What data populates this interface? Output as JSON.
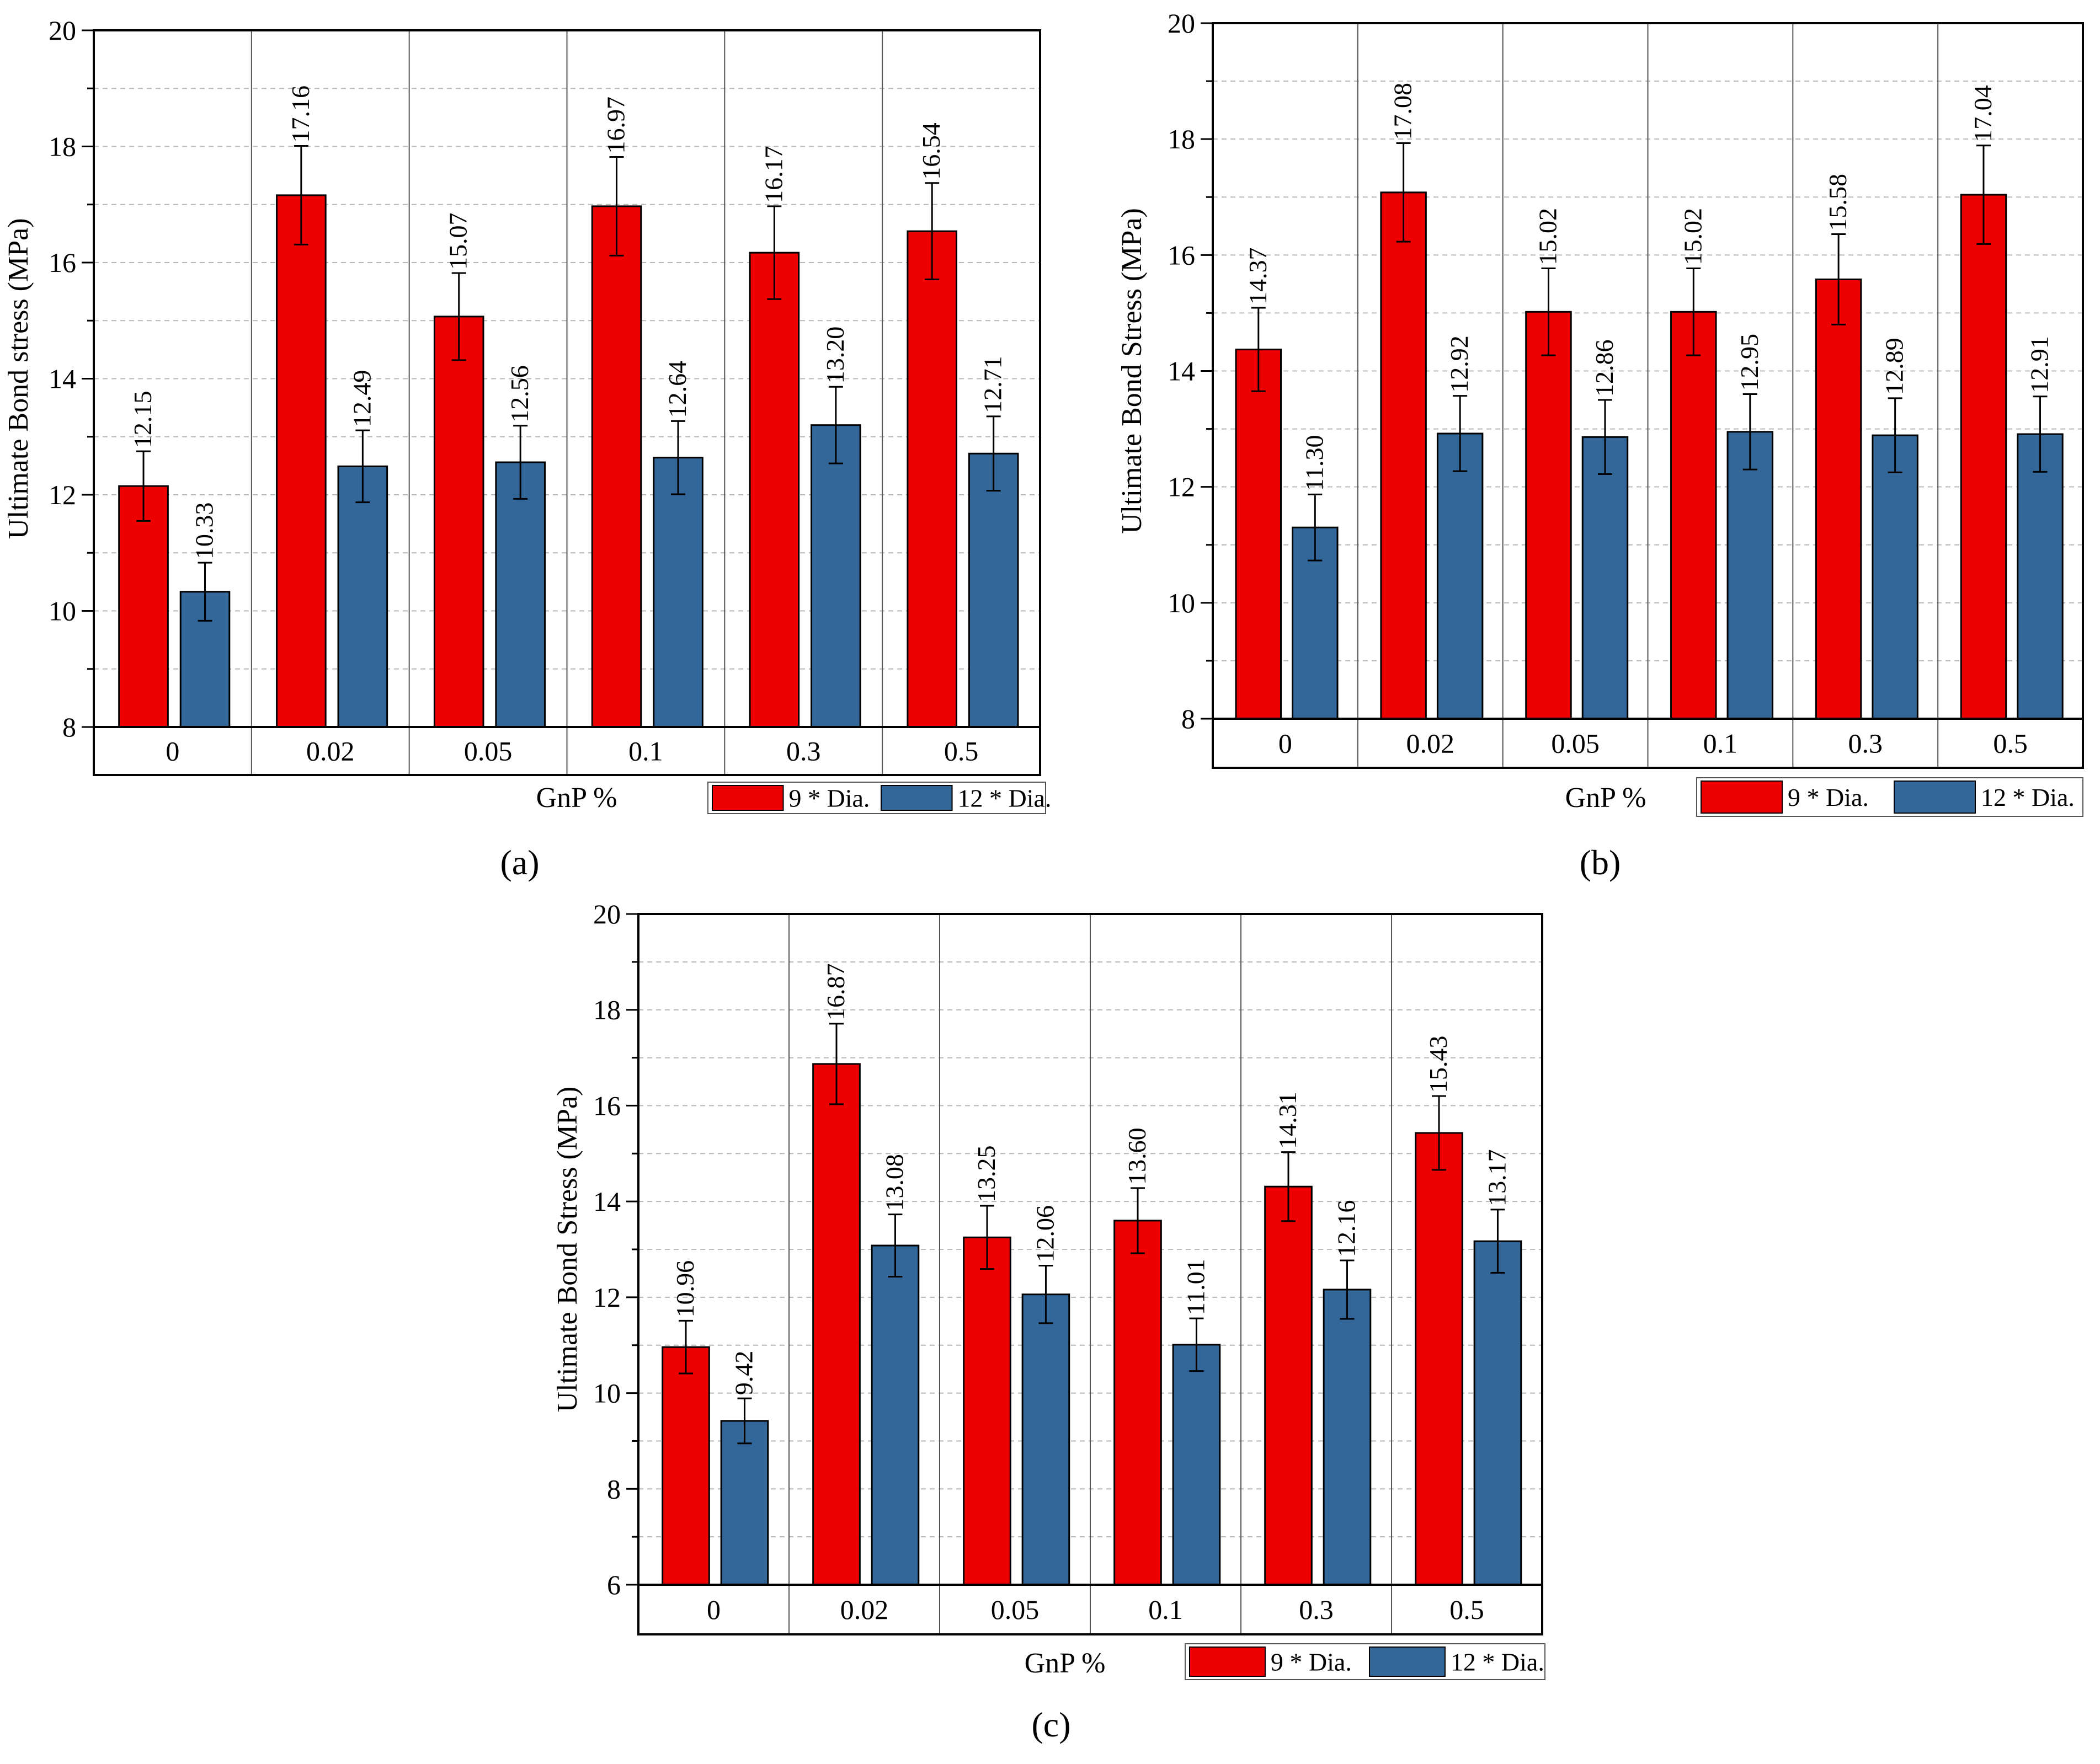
{
  "colors": {
    "series_9": "#ee0000",
    "series_12": "#336699",
    "grid": "#b8b8b8",
    "axis": "#000000"
  },
  "chart_data": [
    {
      "panel": "a",
      "caption": "(a)",
      "type": "bar",
      "ylabel": "Ultimate Bond stress (MPa)",
      "xlabel": "GnP %",
      "ylim": [
        8,
        20
      ],
      "yticks": [
        "8",
        "10",
        "12",
        "14",
        "16",
        "18",
        "20"
      ],
      "categories": [
        "0",
        "0.02",
        "0.05",
        "0.1",
        "0.3",
        "0.5"
      ],
      "grid": true,
      "legend": "bottom-right",
      "series": [
        {
          "name": "9 * Dia.",
          "values": [
            12.15,
            17.16,
            15.07,
            16.97,
            16.17,
            16.54
          ],
          "labels": [
            "12.15",
            "17.16",
            "15.07",
            "16.97",
            "16.17",
            "16.54"
          ],
          "errors": [
            0.6,
            0.85,
            0.75,
            0.85,
            0.8,
            0.83
          ]
        },
        {
          "name": "12 * Dia.",
          "values": [
            10.33,
            12.49,
            12.56,
            12.64,
            13.2,
            12.71
          ],
          "labels": [
            "10.33",
            "12.49",
            "12.56",
            "12.64",
            "13.20",
            "12.71"
          ],
          "errors": [
            0.5,
            0.62,
            0.63,
            0.63,
            0.66,
            0.64
          ]
        }
      ]
    },
    {
      "panel": "b",
      "caption": "(b)",
      "type": "bar",
      "ylabel": "Ultimate Bond Stress (MPa)",
      "xlabel": "GnP %",
      "ylim": [
        8,
        20
      ],
      "yticks": [
        "8",
        "10",
        "12",
        "14",
        "16",
        "18",
        "20"
      ],
      "categories": [
        "0",
        "0.02",
        "0.05",
        "0.1",
        "0.3",
        "0.5"
      ],
      "grid": true,
      "legend": "bottom-right",
      "series": [
        {
          "name": "9 * Dia.",
          "values": [
            14.37,
            17.08,
            15.02,
            15.02,
            15.58,
            17.04
          ],
          "labels": [
            "14.37",
            "17.08",
            "15.02",
            "15.02",
            "15.58",
            "17.04"
          ],
          "errors": [
            0.72,
            0.85,
            0.75,
            0.75,
            0.78,
            0.85
          ]
        },
        {
          "name": "12 * Dia.",
          "values": [
            11.3,
            12.92,
            12.86,
            12.95,
            12.89,
            12.91
          ],
          "labels": [
            "11.30",
            "12.92",
            "12.86",
            "12.95",
            "12.89",
            "12.91"
          ],
          "errors": [
            0.57,
            0.65,
            0.64,
            0.65,
            0.64,
            0.65
          ]
        }
      ]
    },
    {
      "panel": "c",
      "caption": "(c)",
      "type": "bar",
      "ylabel": "Ultimate Bond Stress (MPa)",
      "xlabel": "GnP %",
      "ylim": [
        6,
        20
      ],
      "yticks": [
        "6",
        "8",
        "10",
        "12",
        "14",
        "16",
        "18",
        "20"
      ],
      "categories": [
        "0",
        "0.02",
        "0.05",
        "0.1",
        "0.3",
        "0.5"
      ],
      "grid": true,
      "legend": "bottom-right",
      "series": [
        {
          "name": "9 * Dia.",
          "values": [
            10.96,
            16.87,
            13.25,
            13.6,
            14.31,
            15.43
          ],
          "labels": [
            "10.96",
            "16.87",
            "13.25",
            "13.60",
            "14.31",
            "15.43"
          ],
          "errors": [
            0.55,
            0.84,
            0.66,
            0.68,
            0.72,
            0.77
          ]
        },
        {
          "name": "12 * Dia.",
          "values": [
            9.42,
            13.08,
            12.06,
            11.01,
            12.16,
            13.17
          ],
          "labels": [
            "9.42",
            "13.08",
            "12.06",
            "11.01",
            "12.16",
            "13.17"
          ],
          "errors": [
            0.47,
            0.65,
            0.6,
            0.55,
            0.61,
            0.66
          ]
        }
      ]
    }
  ]
}
